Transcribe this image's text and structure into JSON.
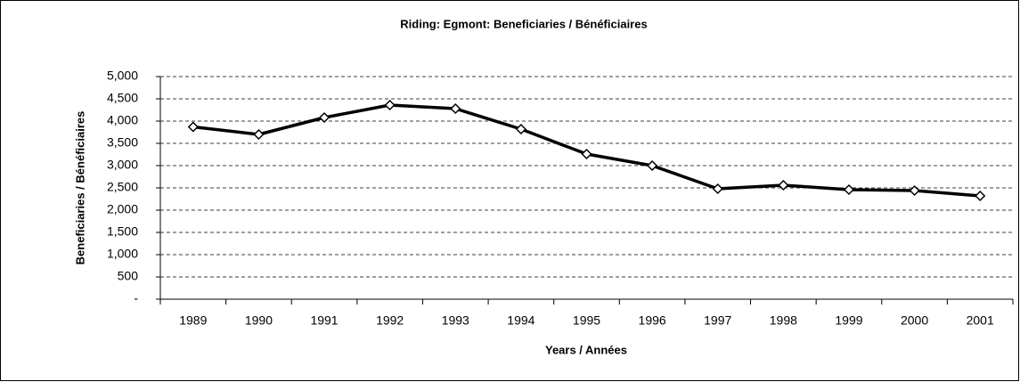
{
  "chart_data": {
    "type": "line",
    "title": "Riding:  Egmont:  Beneficiaries / Bénéficiaires",
    "x_label": "Years / Années",
    "y_label": "Beneficiaries / Bénéficiaires",
    "categories": [
      "1989",
      "1990",
      "1991",
      "1992",
      "1993",
      "1994",
      "1995",
      "1996",
      "1997",
      "1998",
      "1999",
      "2000",
      "2001"
    ],
    "series": [
      {
        "name": "Beneficiaries / Bénéficiaires",
        "color": "#000000",
        "values": [
          3870,
          3700,
          4080,
          4360,
          4280,
          3820,
          3260,
          3000,
          2480,
          2560,
          2460,
          2440,
          2320
        ]
      }
    ],
    "ylim": [
      0,
      5000
    ],
    "yticks": [
      {
        "value": 0,
        "label": "-"
      },
      500,
      {
        "value": 1000,
        "label": "1,000"
      },
      {
        "value": 1500,
        "label": "1,500"
      },
      {
        "value": 2000,
        "label": "2,000"
      },
      {
        "value": 2500,
        "label": "2,500"
      },
      {
        "value": 3000,
        "label": "3,000"
      },
      {
        "value": 3500,
        "label": "3,500"
      },
      {
        "value": 4000,
        "label": "4,000"
      },
      {
        "value": 4500,
        "label": "4,500"
      },
      {
        "value": 5000,
        "label": "5,000"
      }
    ],
    "grid": true
  }
}
